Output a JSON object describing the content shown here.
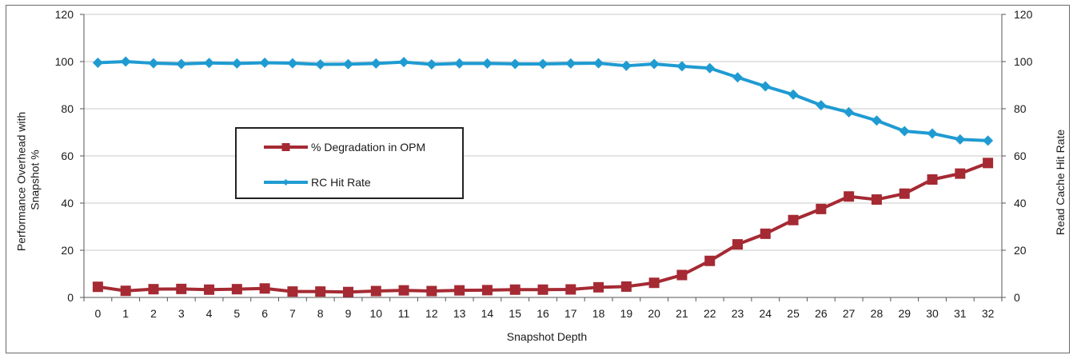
{
  "chart_data": {
    "type": "line",
    "xlabel": "Snapshot Depth",
    "ylabel_left": "Performance Overhead with Snapshot %",
    "ylabel_right": "Read Cache Hit Rate",
    "x": [
      0,
      1,
      2,
      3,
      4,
      5,
      6,
      7,
      8,
      9,
      10,
      11,
      12,
      13,
      14,
      15,
      16,
      17,
      18,
      19,
      20,
      21,
      22,
      23,
      24,
      25,
      26,
      27,
      28,
      29,
      30,
      31,
      32
    ],
    "ylim_left": [
      0,
      120
    ],
    "ylim_right": [
      0,
      120
    ],
    "yticks": [
      0,
      20,
      40,
      60,
      80,
      100,
      120
    ],
    "grid": "horizontal",
    "legend_position": "left-center",
    "series": [
      {
        "name": "% Degradation in OPM",
        "axis": "left",
        "color": "#a52a33",
        "marker": "square",
        "values": [
          4.5,
          2.8,
          3.5,
          3.6,
          3.3,
          3.5,
          3.8,
          2.5,
          2.5,
          2.3,
          2.7,
          3.0,
          2.7,
          3.0,
          3.1,
          3.3,
          3.3,
          3.4,
          4.3,
          4.6,
          6.2,
          9.5,
          15.5,
          22.5,
          27.0,
          32.8,
          37.5,
          42.8,
          41.5,
          44.0,
          50.0,
          52.5,
          57.0
        ]
      },
      {
        "name": "RC Hit Rate",
        "axis": "right",
        "color": "#1f9bd2",
        "marker": "diamond",
        "values": [
          99.5,
          100.0,
          99.3,
          99.0,
          99.4,
          99.2,
          99.5,
          99.3,
          98.8,
          98.9,
          99.2,
          99.8,
          98.8,
          99.2,
          99.2,
          99.0,
          99.0,
          99.2,
          99.3,
          98.2,
          99.0,
          98.0,
          97.2,
          93.3,
          89.5,
          86.0,
          81.5,
          78.5,
          75.0,
          70.5,
          69.5,
          67.0,
          66.5
        ]
      }
    ]
  }
}
